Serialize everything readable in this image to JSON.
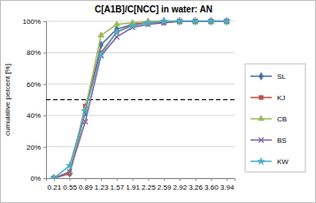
{
  "chart_data": {
    "type": "line",
    "title": "C[A1B]/C[NCC] in water: AN",
    "y_label": "cumulative percent [%]",
    "categories": [
      "0.21",
      "0.55",
      "0.89",
      "1.23",
      "1.57",
      "1.91",
      "2.25",
      "2.59",
      "2.92",
      "3.26",
      "3.60",
      "3.94"
    ],
    "series": [
      {
        "name": "SL",
        "color": "#4a6f9c",
        "marker": "diamond",
        "values": [
          0,
          3,
          42,
          85,
          95,
          98,
          99,
          100,
          100,
          100,
          100,
          100
        ]
      },
      {
        "name": "KJ",
        "color": "#c0504d",
        "marker": "square",
        "values": [
          0,
          3,
          46,
          80,
          93,
          98,
          99,
          99,
          100,
          100,
          100,
          100
        ]
      },
      {
        "name": "CB",
        "color": "#9bbb59",
        "marker": "triangle",
        "values": [
          0,
          4,
          44,
          91,
          98,
          99,
          100,
          100,
          100,
          100,
          100,
          100
        ]
      },
      {
        "name": "BS",
        "color": "#8064a2",
        "marker": "x",
        "values": [
          0,
          4,
          36,
          78,
          90,
          96,
          98,
          99,
          100,
          100,
          100,
          100
        ]
      },
      {
        "name": "KW",
        "color": "#4bacc6",
        "marker": "star",
        "values": [
          0,
          8,
          43,
          79,
          93,
          97,
          99,
          100,
          100,
          100,
          100,
          100
        ]
      }
    ],
    "reference_line": 50,
    "ylim": [
      0,
      100
    ],
    "yticks": [
      {
        "value": 0,
        "label": "0%"
      },
      {
        "value": 20,
        "label": "20%"
      },
      {
        "value": 40,
        "label": "40%"
      },
      {
        "value": 60,
        "label": "60%"
      },
      {
        "value": 80,
        "label": "80%"
      },
      {
        "value": 100,
        "label": "100%"
      }
    ],
    "grid": true,
    "legend": "right"
  }
}
